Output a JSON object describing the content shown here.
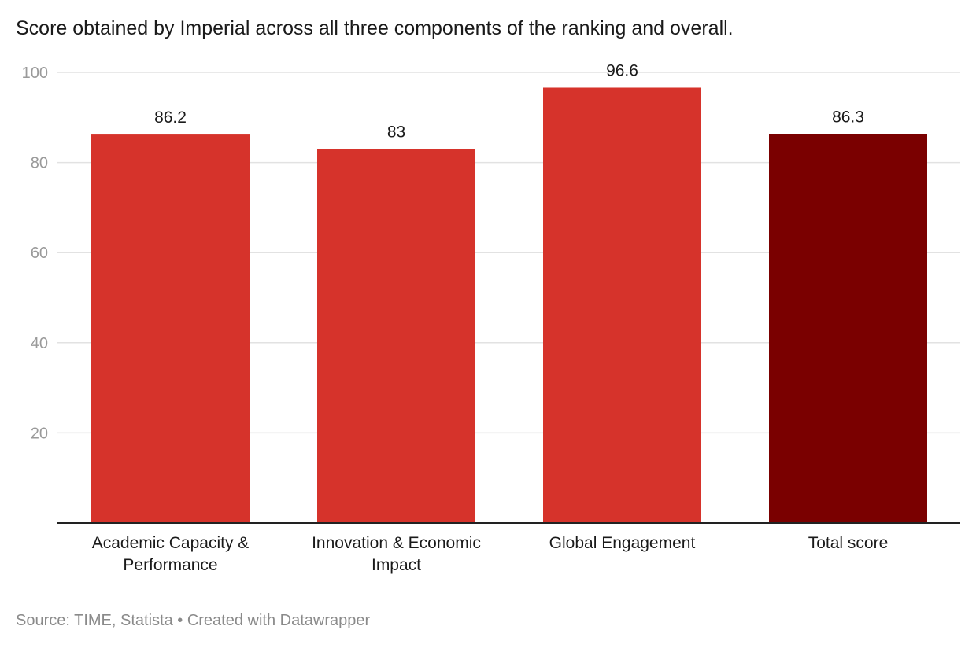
{
  "chart_data": {
    "type": "bar",
    "title": "Score obtained by Imperial across all three components of the ranking and overall.",
    "categories": [
      [
        "Academic Capacity &",
        "Performance"
      ],
      [
        "Innovation & Economic",
        "Impact"
      ],
      [
        "Global Engagement"
      ],
      [
        "Total score"
      ]
    ],
    "values": [
      86.2,
      83,
      96.6,
      86.3
    ],
    "value_labels": [
      "86.2",
      "83",
      "96.6",
      "86.3"
    ],
    "bar_colors": [
      "#d6332b",
      "#d6332b",
      "#d6332b",
      "#7a0000"
    ],
    "ylim": [
      0,
      100
    ],
    "yticks": [
      20,
      40,
      60,
      80,
      100
    ],
    "grid": true,
    "xlabel": "",
    "ylabel": ""
  },
  "source": {
    "text": "Source: TIME, Statista • Created with Datawrapper"
  },
  "colors": {
    "axis": "#222222",
    "grid": "#e2e2e2",
    "tick_label": "#9a9a9a"
  }
}
